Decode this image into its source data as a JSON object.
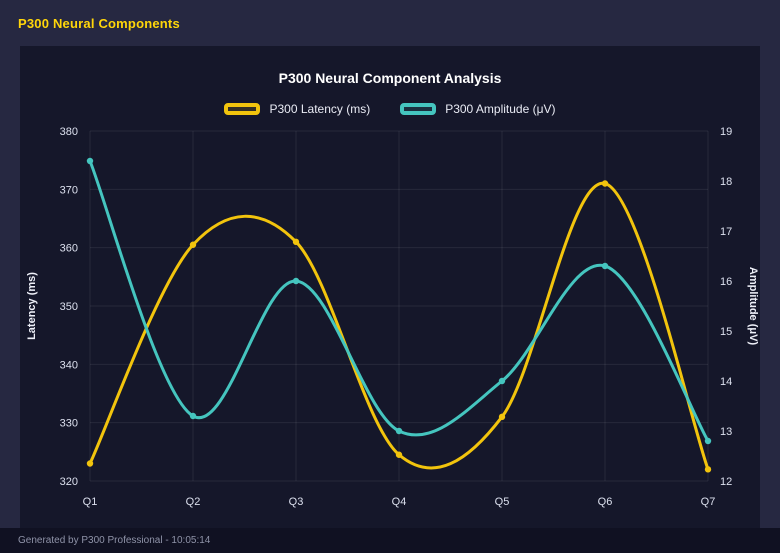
{
  "header": {
    "title": "P300 Neural Components"
  },
  "colors": {
    "header_title": "#ffd60a",
    "latency_yellow": "#f2c40d",
    "amplitude_teal": "#45c5bf",
    "grid": "rgba(255,255,255,0.08)"
  },
  "footer": {
    "text": "Generated by P300 Professional - 10:05:14"
  },
  "chart_data": {
    "type": "line",
    "title": "P300 Neural Component Analysis",
    "categories": [
      "Q1",
      "Q2",
      "Q3",
      "Q4",
      "Q5",
      "Q6",
      "Q7"
    ],
    "series": [
      {
        "name": "P300 Latency (ms)",
        "axis": "left",
        "color": "#f2c40d",
        "values": [
          323,
          360.5,
          361,
          324.5,
          331,
          371,
          322
        ]
      },
      {
        "name": "P300 Amplitude (μV)",
        "axis": "right",
        "color": "#45c5bf",
        "values": [
          18.4,
          13.3,
          16.0,
          13.0,
          14.0,
          16.3,
          12.8
        ]
      }
    ],
    "left_axis": {
      "label": "Latency (ms)",
      "min": 320,
      "max": 380,
      "ticks": [
        320,
        330,
        340,
        350,
        360,
        370,
        380
      ]
    },
    "right_axis": {
      "label": "Amplitude (μV)",
      "min": 12,
      "max": 19,
      "ticks": [
        12,
        13,
        14,
        15,
        16,
        17,
        18,
        19
      ]
    },
    "grid": true,
    "curve": "smooth",
    "legend_position": "top"
  }
}
